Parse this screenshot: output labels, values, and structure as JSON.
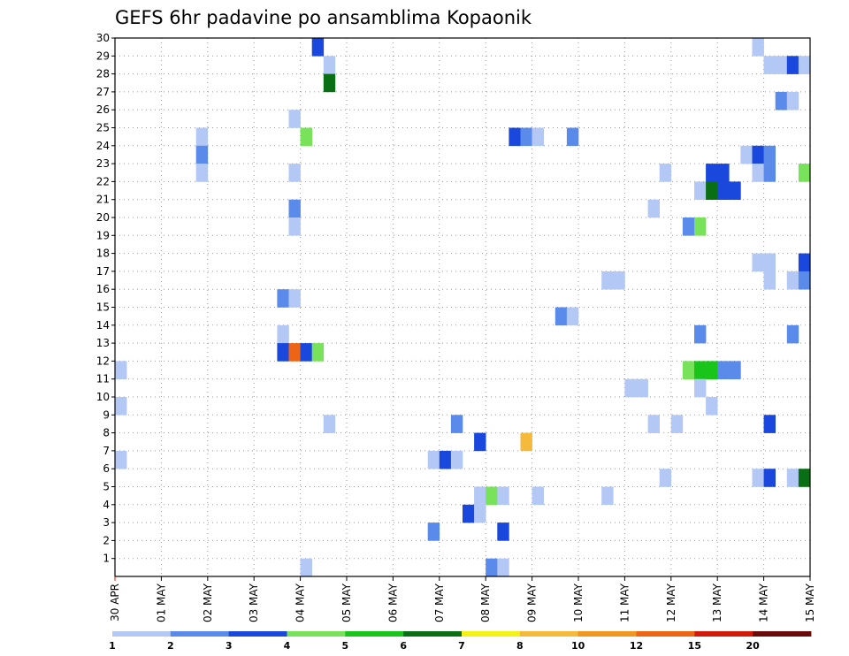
{
  "chart_data": {
    "type": "heatmap",
    "title": "GEFS 6hr padavine po ansamblima Kopaonik",
    "x_tick_labels": [
      "30 APR",
      "01 MAY",
      "02 MAY",
      "03 MAY",
      "04 MAY",
      "05 MAY",
      "06 MAY",
      "07 MAY",
      "08 MAY",
      "09 MAY",
      "10 MAY",
      "11 MAY",
      "12 MAY",
      "13 MAY",
      "14 MAY",
      "15 MAY"
    ],
    "y_tick_labels": [
      "1",
      "2",
      "3",
      "4",
      "5",
      "6",
      "7",
      "8",
      "9",
      "10",
      "11",
      "12",
      "13",
      "14",
      "15",
      "16",
      "17",
      "18",
      "19",
      "20",
      "21",
      "22",
      "23",
      "24",
      "25",
      "26",
      "27",
      "28",
      "29",
      "30"
    ],
    "xlim": [
      0,
      60
    ],
    "ylim": [
      0,
      30
    ],
    "x_unit": "6-hour steps from 30 APR 00Z",
    "y_unit": "ensemble member",
    "grid": true,
    "legend_position": "bottom",
    "color_levels": [
      1,
      2,
      3,
      4,
      5,
      6,
      7,
      8,
      10,
      12,
      15,
      20
    ],
    "colors": [
      "#b3c8f5",
      "#5b8bea",
      "#1a48dc",
      "#78e35a",
      "#18c518",
      "#0a6e14",
      "#f2f217",
      "#f5b93c",
      "#f29622",
      "#ed6414",
      "#d21a0a",
      "#6a0a0a"
    ],
    "cells": [
      {
        "x": 17,
        "y": 30,
        "value": 3
      },
      {
        "x": 55,
        "y": 30,
        "value": 1
      },
      {
        "x": 18,
        "y": 29,
        "value": 1
      },
      {
        "x": 56,
        "y": 29,
        "value": 1
      },
      {
        "x": 57,
        "y": 29,
        "value": 1
      },
      {
        "x": 58,
        "y": 29,
        "value": 3
      },
      {
        "x": 59,
        "y": 29,
        "value": 1
      },
      {
        "x": 18,
        "y": 28,
        "value": 6
      },
      {
        "x": 57,
        "y": 27,
        "value": 2
      },
      {
        "x": 58,
        "y": 27,
        "value": 1
      },
      {
        "x": 15,
        "y": 26,
        "value": 1
      },
      {
        "x": 7,
        "y": 25,
        "value": 1
      },
      {
        "x": 16,
        "y": 25,
        "value": 4
      },
      {
        "x": 34,
        "y": 25,
        "value": 3
      },
      {
        "x": 35,
        "y": 25,
        "value": 2
      },
      {
        "x": 36,
        "y": 25,
        "value": 1
      },
      {
        "x": 39,
        "y": 25,
        "value": 2
      },
      {
        "x": 7,
        "y": 24,
        "value": 2
      },
      {
        "x": 54,
        "y": 24,
        "value": 1
      },
      {
        "x": 55,
        "y": 24,
        "value": 3
      },
      {
        "x": 56,
        "y": 24,
        "value": 2
      },
      {
        "x": 7,
        "y": 23,
        "value": 1
      },
      {
        "x": 15,
        "y": 23,
        "value": 1
      },
      {
        "x": 47,
        "y": 23,
        "value": 1
      },
      {
        "x": 51,
        "y": 23,
        "value": 3
      },
      {
        "x": 52,
        "y": 23,
        "value": 3
      },
      {
        "x": 55,
        "y": 23,
        "value": 1
      },
      {
        "x": 56,
        "y": 23,
        "value": 2
      },
      {
        "x": 59,
        "y": 23,
        "value": 4
      },
      {
        "x": 50,
        "y": 22,
        "value": 1
      },
      {
        "x": 51,
        "y": 22,
        "value": 6
      },
      {
        "x": 52,
        "y": 22,
        "value": 3
      },
      {
        "x": 53,
        "y": 22,
        "value": 3
      },
      {
        "x": 15,
        "y": 21,
        "value": 2
      },
      {
        "x": 46,
        "y": 21,
        "value": 1
      },
      {
        "x": 15,
        "y": 20,
        "value": 1
      },
      {
        "x": 49,
        "y": 20,
        "value": 2
      },
      {
        "x": 50,
        "y": 20,
        "value": 4
      },
      {
        "x": 55,
        "y": 18,
        "value": 1
      },
      {
        "x": 56,
        "y": 18,
        "value": 1
      },
      {
        "x": 59,
        "y": 18,
        "value": 3
      },
      {
        "x": 42,
        "y": 17,
        "value": 1
      },
      {
        "x": 43,
        "y": 17,
        "value": 1
      },
      {
        "x": 56,
        "y": 17,
        "value": 1
      },
      {
        "x": 58,
        "y": 17,
        "value": 1
      },
      {
        "x": 59,
        "y": 17,
        "value": 2
      },
      {
        "x": 14,
        "y": 16,
        "value": 2
      },
      {
        "x": 15,
        "y": 16,
        "value": 1
      },
      {
        "x": 38,
        "y": 15,
        "value": 2
      },
      {
        "x": 39,
        "y": 15,
        "value": 1
      },
      {
        "x": 14,
        "y": 14,
        "value": 1
      },
      {
        "x": 50,
        "y": 14,
        "value": 2
      },
      {
        "x": 58,
        "y": 14,
        "value": 2
      },
      {
        "x": 14,
        "y": 13,
        "value": 3
      },
      {
        "x": 15,
        "y": 13,
        "value": 12
      },
      {
        "x": 16,
        "y": 13,
        "value": 3
      },
      {
        "x": 17,
        "y": 13,
        "value": 4
      },
      {
        "x": 0,
        "y": 12,
        "value": 1
      },
      {
        "x": 49,
        "y": 12,
        "value": 4
      },
      {
        "x": 50,
        "y": 12,
        "value": 5
      },
      {
        "x": 51,
        "y": 12,
        "value": 5
      },
      {
        "x": 52,
        "y": 12,
        "value": 2
      },
      {
        "x": 53,
        "y": 12,
        "value": 2
      },
      {
        "x": 44,
        "y": 11,
        "value": 1
      },
      {
        "x": 45,
        "y": 11,
        "value": 1
      },
      {
        "x": 50,
        "y": 11,
        "value": 1
      },
      {
        "x": 0,
        "y": 10,
        "value": 1
      },
      {
        "x": 51,
        "y": 10,
        "value": 1
      },
      {
        "x": 18,
        "y": 9,
        "value": 1
      },
      {
        "x": 29,
        "y": 9,
        "value": 2
      },
      {
        "x": 46,
        "y": 9,
        "value": 1
      },
      {
        "x": 48,
        "y": 9,
        "value": 1
      },
      {
        "x": 56,
        "y": 9,
        "value": 3
      },
      {
        "x": 31,
        "y": 8,
        "value": 3
      },
      {
        "x": 35,
        "y": 8,
        "value": 8
      },
      {
        "x": 0,
        "y": 7,
        "value": 1
      },
      {
        "x": 27,
        "y": 7,
        "value": 1
      },
      {
        "x": 28,
        "y": 7,
        "value": 3
      },
      {
        "x": 29,
        "y": 7,
        "value": 1
      },
      {
        "x": 47,
        "y": 6,
        "value": 1
      },
      {
        "x": 55,
        "y": 6,
        "value": 1
      },
      {
        "x": 56,
        "y": 6,
        "value": 3
      },
      {
        "x": 58,
        "y": 6,
        "value": 1
      },
      {
        "x": 59,
        "y": 6,
        "value": 6
      },
      {
        "x": 31,
        "y": 5,
        "value": 1
      },
      {
        "x": 32,
        "y": 5,
        "value": 4
      },
      {
        "x": 33,
        "y": 5,
        "value": 1
      },
      {
        "x": 36,
        "y": 5,
        "value": 1
      },
      {
        "x": 42,
        "y": 5,
        "value": 1
      },
      {
        "x": 30,
        "y": 4,
        "value": 3
      },
      {
        "x": 31,
        "y": 4,
        "value": 1
      },
      {
        "x": 27,
        "y": 3,
        "value": 2
      },
      {
        "x": 33,
        "y": 3,
        "value": 3
      },
      {
        "x": 16,
        "y": 1,
        "value": 1
      },
      {
        "x": 32,
        "y": 1,
        "value": 2
      },
      {
        "x": 33,
        "y": 1,
        "value": 1
      }
    ]
  }
}
